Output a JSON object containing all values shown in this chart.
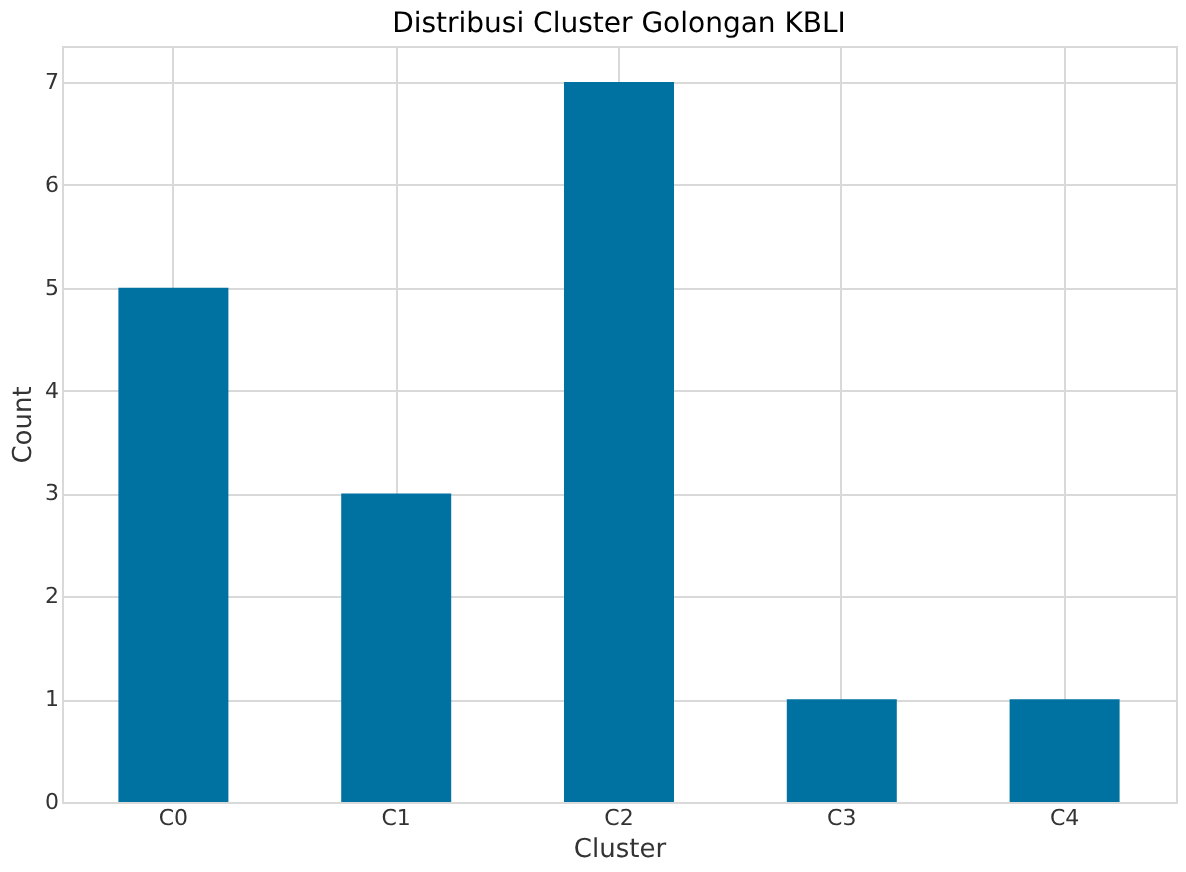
{
  "chart_data": {
    "type": "bar",
    "title": "Distribusi Cluster Golongan KBLI",
    "xlabel": "Cluster",
    "ylabel": "Count",
    "categories": [
      "C0",
      "C1",
      "C2",
      "C3",
      "C4"
    ],
    "values": [
      5,
      3,
      7,
      1,
      1
    ],
    "color": "#0072a2",
    "ylim": [
      0,
      7.35
    ],
    "yticks": [
      0,
      1,
      2,
      3,
      4,
      5,
      6,
      7
    ],
    "grid": true
  }
}
